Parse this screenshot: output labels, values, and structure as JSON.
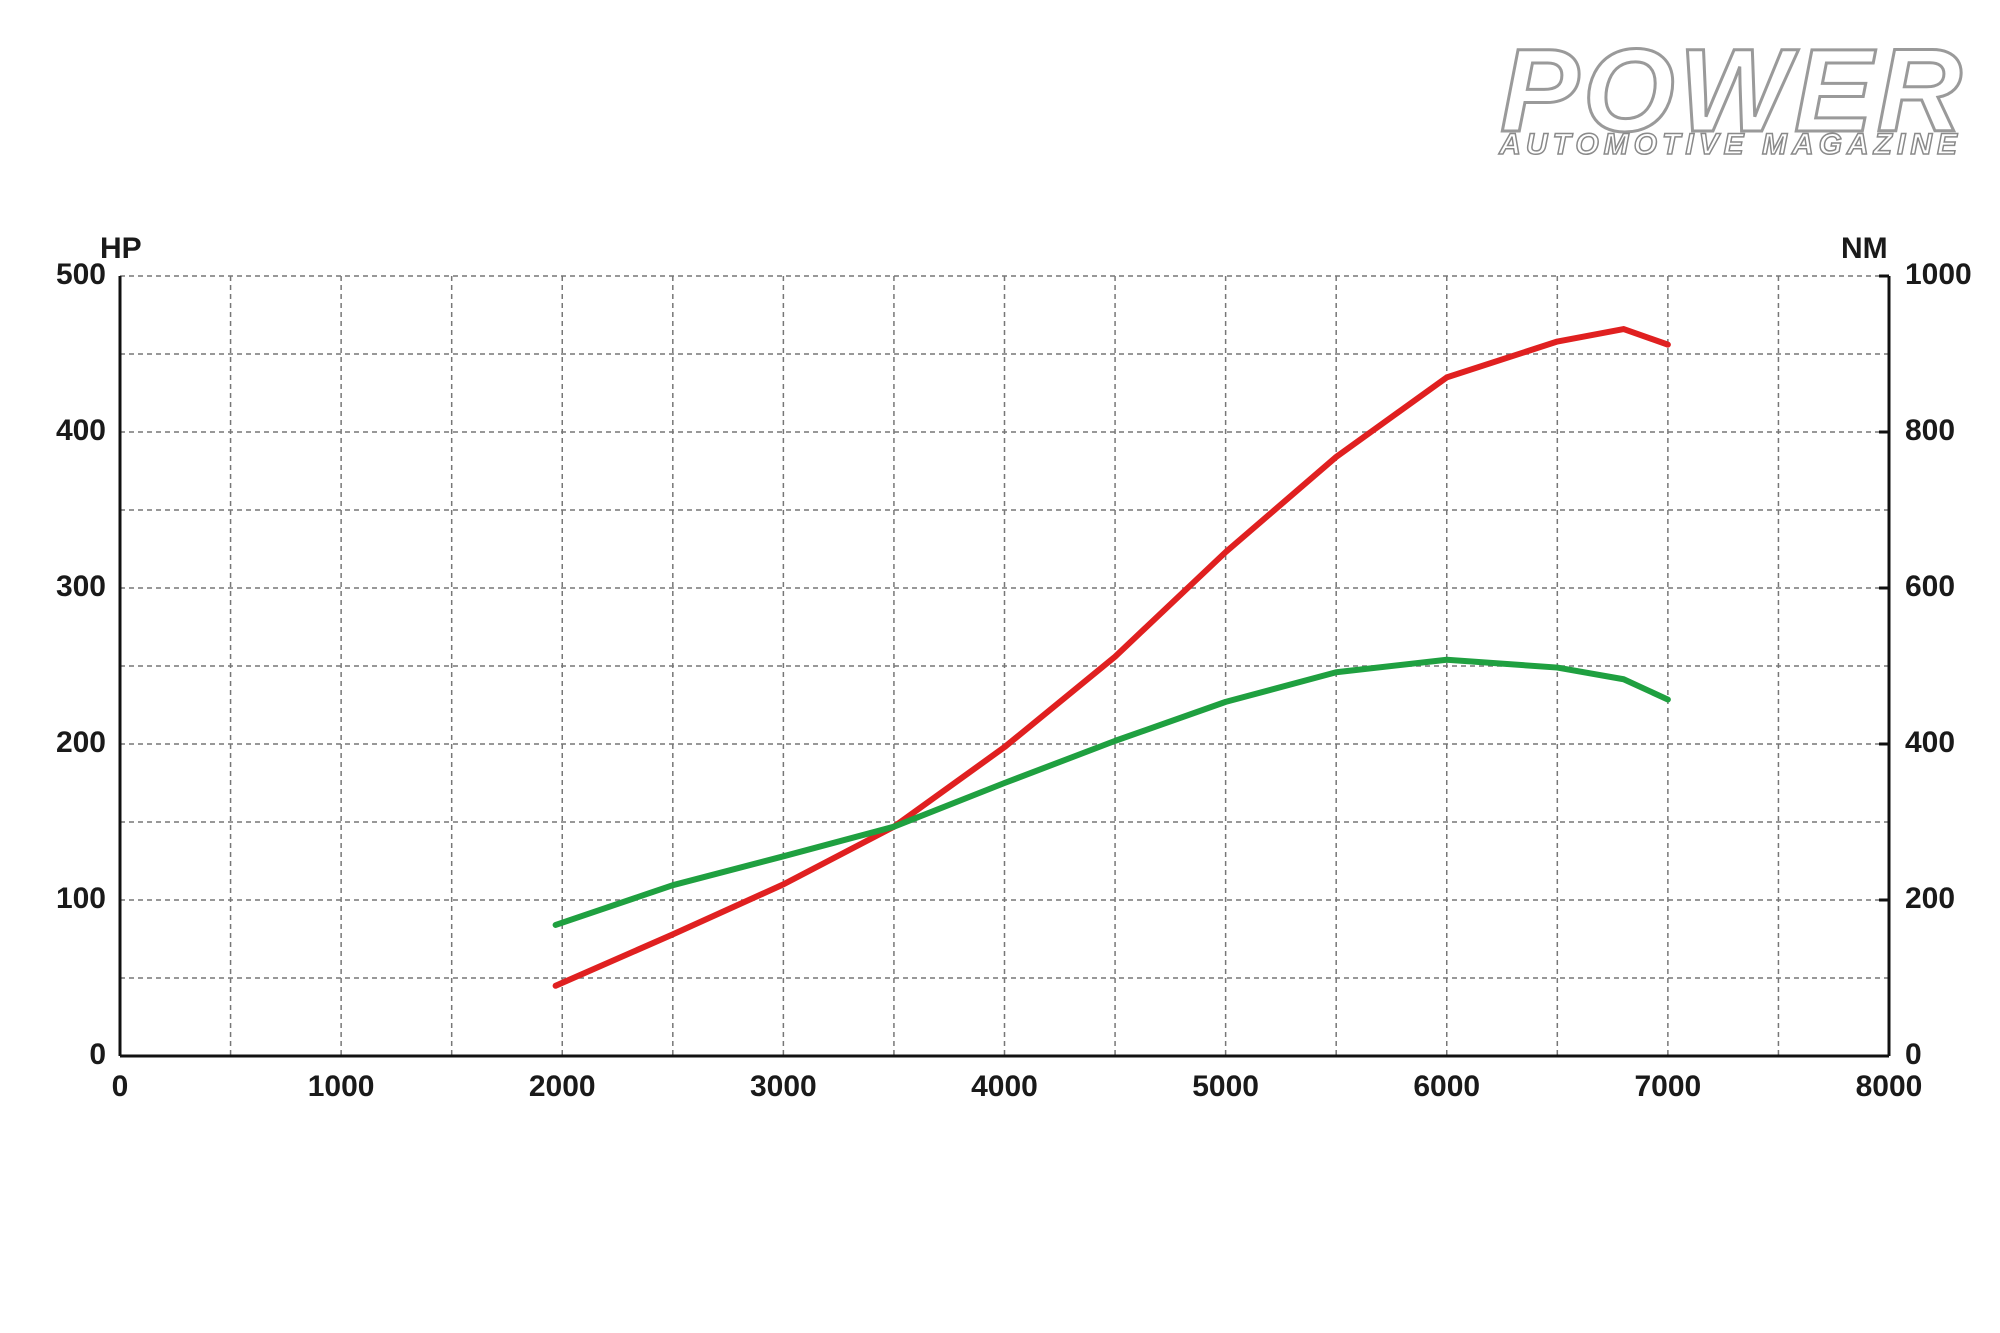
{
  "logo": {
    "title": "POWER",
    "subtitle": "AUTOMOTIVE MAGAZINE"
  },
  "chart_data": {
    "type": "line",
    "y_label": "HP",
    "y2_label": "NM",
    "x": [
      1970,
      2500,
      3000,
      3500,
      4000,
      4500,
      5000,
      5500,
      6000,
      6500,
      6800,
      7000
    ],
    "series": [
      {
        "name": "HP",
        "color": "#e02020",
        "axis": "y",
        "values": [
          45,
          78,
          110,
          147,
          198,
          256,
          323,
          384,
          435,
          458,
          466,
          456
        ]
      },
      {
        "name": "NM",
        "color": "#1fa040",
        "axis": "y2",
        "values": [
          168,
          219,
          256,
          294,
          350,
          404,
          454,
          492,
          508,
          498,
          483,
          457
        ]
      }
    ],
    "xlim": [
      0,
      8000
    ],
    "xticks": [
      0,
      1000,
      2000,
      3000,
      4000,
      5000,
      6000,
      7000,
      8000
    ],
    "ylim": [
      0,
      500
    ],
    "yticks": [
      0,
      100,
      200,
      300,
      400,
      500
    ],
    "y2lim": [
      0,
      1000
    ],
    "y2ticks": [
      0,
      200,
      400,
      600,
      800,
      1000
    ],
    "grid": true
  }
}
